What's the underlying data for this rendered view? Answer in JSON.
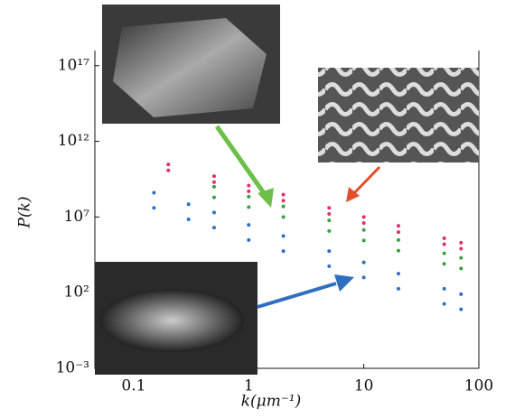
{
  "chart_data": {
    "type": "scatter",
    "x_label": "k(μm⁻¹)",
    "y_label": "P(k)",
    "xlog": true,
    "ylog": true,
    "xlim": [
      0.046,
      100
    ],
    "ylim": [
      0.001,
      1e+18
    ],
    "xticks": [
      0.1,
      1,
      10,
      100
    ],
    "yticks": [
      {
        "value": 0.001,
        "label": "10⁻³"
      },
      {
        "value": 100,
        "label": "10²"
      },
      {
        "value": 10000000,
        "label": "10⁷"
      },
      {
        "value": 1000000000000,
        "label": "10¹²"
      },
      {
        "value": 1e+17,
        "label": "10¹⁷"
      }
    ],
    "series": [
      {
        "color": "#e0306a",
        "x": [
          0.2,
          0.5,
          1,
          2,
          5,
          10,
          20,
          50,
          70
        ],
        "values": [
          30000000000.0,
          5000000000.0,
          1200000000.0,
          300000000.0,
          40000000.0,
          10000000.0,
          2600000.0,
          400000.0,
          200000.0
        ]
      },
      {
        "color": "#e0306a",
        "x": [
          0.2,
          0.5,
          1,
          2,
          5,
          10,
          20,
          50,
          70
        ],
        "values": [
          12000000000.0,
          2000000000.0,
          500000000.0,
          120000000.0,
          16000000.0,
          4000000.0,
          1000000.0,
          160000.0,
          80000.0
        ]
      },
      {
        "color": "#3aa040",
        "x": [
          0.5,
          1,
          2,
          5,
          10,
          20,
          50,
          70
        ],
        "values": [
          1000000000.0,
          220000000.0,
          50000000.0,
          6000000.0,
          1400000.0,
          300000.0,
          40000.0,
          20000.0
        ]
      },
      {
        "color": "#3aa040",
        "x": [
          0.5,
          1,
          2,
          5,
          10,
          20,
          50,
          70
        ],
        "values": [
          200000000.0,
          45000000.0,
          10000000.0,
          1200000.0,
          280000.0,
          60000.0,
          8000.0,
          4000.0
        ]
      },
      {
        "color": "#2f6fc0",
        "x": [
          0.15,
          0.3,
          0.5,
          1,
          2,
          5,
          10,
          20,
          50,
          70
        ],
        "values": [
          400000000.0,
          70000000.0,
          20000000.0,
          3000000.0,
          560000.0,
          56000.0,
          10000.0,
          1800.0,
          180,
          80
        ]
      },
      {
        "color": "#2f6fc0",
        "x": [
          0.15,
          0.3,
          0.5,
          1,
          2,
          5,
          10,
          20,
          50,
          70
        ],
        "values": [
          40000000.0,
          7000000.0,
          2000000.0,
          300000.0,
          56000.0,
          5600.0,
          1000.0,
          180,
          18,
          8
        ]
      }
    ]
  }
}
